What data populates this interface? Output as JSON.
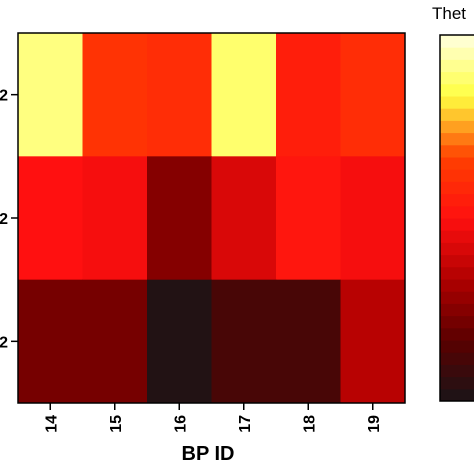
{
  "chart_data": {
    "type": "heatmap",
    "x_label": "BP ID",
    "colorbar_title": "Thet",
    "categories": [
      "14",
      "15",
      "16",
      "17",
      "18",
      "19"
    ],
    "rows": [
      "2",
      "2",
      "2"
    ],
    "values": [
      [
        0.9,
        0.62,
        0.6,
        0.88,
        0.55,
        0.6
      ],
      [
        0.5,
        0.48,
        0.25,
        0.42,
        0.52,
        0.48
      ],
      [
        0.22,
        0.22,
        0.02,
        0.12,
        0.12,
        0.35
      ]
    ],
    "zlim": [
      0,
      1
    ],
    "colormap": [
      "#1a1417",
      "#5a0000",
      "#b00000",
      "#ff1010",
      "#ff4000",
      "#ffff40",
      "#ffffe0"
    ]
  }
}
